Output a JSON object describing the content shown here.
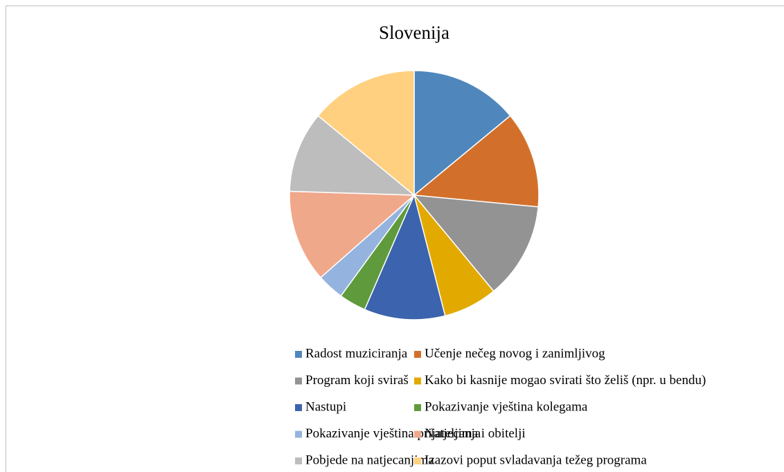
{
  "chart_data": {
    "type": "pie",
    "title": "Slovenija",
    "categories": [
      "Radost muziciranja",
      "Učenje nečeg novog i zanimljivog",
      "Program koji sviraš",
      "Kako bi kasnije mogao svirati što želiš (npr. u bendu)",
      "Nastupi",
      "Pokazivanje vještina kolegama",
      "Pokazivanje vještina prijateljima i obitelji",
      "Natjecanja",
      "Pobjede na natjecanjima",
      "Izazovi poput svladavanja težeg programa"
    ],
    "values": [
      14,
      12.5,
      12.5,
      7,
      10.5,
      3.5,
      3.5,
      12,
      10.5,
      14
    ],
    "colors": [
      "#4f87bd",
      "#d2702b",
      "#939393",
      "#e2aa00",
      "#3c63ad",
      "#5f9a3c",
      "#94b4df",
      "#f0a88a",
      "#bdbdbd",
      "#ffd07f"
    ],
    "legend": "bottom"
  }
}
